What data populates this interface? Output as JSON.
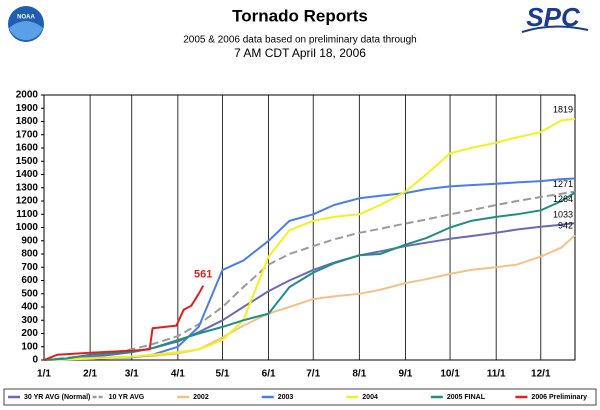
{
  "chart_data": {
    "type": "line",
    "title": "Tornado Reports",
    "subtitle": [
      "2005 & 2006 data based on preliminary data through",
      "7 AM CDT April 18, 2006"
    ],
    "logos": [
      "NOAA",
      "SPC"
    ],
    "x": [
      1,
      15,
      32,
      46,
      60,
      74,
      91,
      105,
      121,
      135,
      152,
      166,
      182,
      196,
      213,
      227,
      244,
      258,
      274,
      288,
      305,
      319,
      335,
      349,
      358
    ],
    "xlim": [
      1,
      358
    ],
    "xticks": [
      {
        "value": 1,
        "label": "1/1"
      },
      {
        "value": 32,
        "label": "2/1"
      },
      {
        "value": 60,
        "label": "3/1"
      },
      {
        "value": 91,
        "label": "4/1"
      },
      {
        "value": 121,
        "label": "5/1"
      },
      {
        "value": 152,
        "label": "6/1"
      },
      {
        "value": 182,
        "label": "7/1"
      },
      {
        "value": 213,
        "label": "8/1"
      },
      {
        "value": 244,
        "label": "9/1"
      },
      {
        "value": 274,
        "label": "10/1"
      },
      {
        "value": 305,
        "label": "11/1"
      },
      {
        "value": 335,
        "label": "12/1"
      }
    ],
    "ylim": [
      0,
      2000
    ],
    "yticks": [
      0,
      100,
      200,
      300,
      400,
      500,
      600,
      700,
      800,
      900,
      1000,
      1100,
      1200,
      1300,
      1400,
      1500,
      1600,
      1700,
      1800,
      1900,
      2000
    ],
    "grid": "x",
    "legend": "bottom",
    "series": [
      {
        "name": "30 YR AVG (Normal)",
        "color": "#6a6ab8",
        "end_label": true,
        "values": [
          0,
          10,
          25,
          40,
          60,
          90,
          140,
          210,
          300,
          400,
          520,
          600,
          680,
          735,
          790,
          820,
          860,
          885,
          915,
          935,
          960,
          985,
          1005,
          1020,
          1033
        ]
      },
      {
        "name": "10 YR AVG",
        "color": "#9a9a9a",
        "dash": true,
        "end_label": true,
        "values": [
          0,
          15,
          35,
          55,
          80,
          120,
          180,
          270,
          400,
          550,
          720,
          800,
          860,
          910,
          960,
          990,
          1030,
          1060,
          1100,
          1130,
          1170,
          1200,
          1230,
          1255,
          1271
        ]
      },
      {
        "name": "2002",
        "color": "#f5c08a",
        "end_label": true,
        "values": [
          0,
          5,
          15,
          20,
          25,
          30,
          50,
          80,
          170,
          260,
          350,
          400,
          460,
          480,
          500,
          530,
          580,
          610,
          650,
          680,
          700,
          720,
          780,
          850,
          942
        ]
      },
      {
        "name": "2003",
        "color": "#4a7ee6",
        "values": [
          0,
          5,
          10,
          15,
          20,
          40,
          100,
          250,
          680,
          750,
          900,
          1050,
          1100,
          1170,
          1220,
          1240,
          1260,
          1290,
          1310,
          1320,
          1330,
          1340,
          1350,
          1365,
          1370
        ]
      },
      {
        "name": "2004",
        "color": "#f2f21e",
        "end_label": true,
        "values": [
          0,
          5,
          10,
          15,
          25,
          40,
          60,
          80,
          150,
          300,
          780,
          980,
          1050,
          1080,
          1100,
          1170,
          1270,
          1400,
          1560,
          1600,
          1640,
          1680,
          1720,
          1810,
          1819
        ]
      },
      {
        "name": "2005 FINAL",
        "color": "#1f8f86",
        "end_label": true,
        "values": [
          0,
          10,
          40,
          50,
          60,
          90,
          150,
          200,
          250,
          300,
          350,
          550,
          660,
          730,
          790,
          800,
          870,
          920,
          1000,
          1050,
          1080,
          1100,
          1130,
          1200,
          1264
        ]
      },
      {
        "name": "2006 Preliminary",
        "color": "#e02020",
        "end_label": true,
        "x": [
          1,
          10,
          32,
          60,
          72,
          74,
          90,
          95,
          100,
          105,
          108
        ],
        "values": [
          0,
          40,
          55,
          70,
          80,
          240,
          260,
          380,
          410,
          500,
          561
        ]
      }
    ]
  }
}
